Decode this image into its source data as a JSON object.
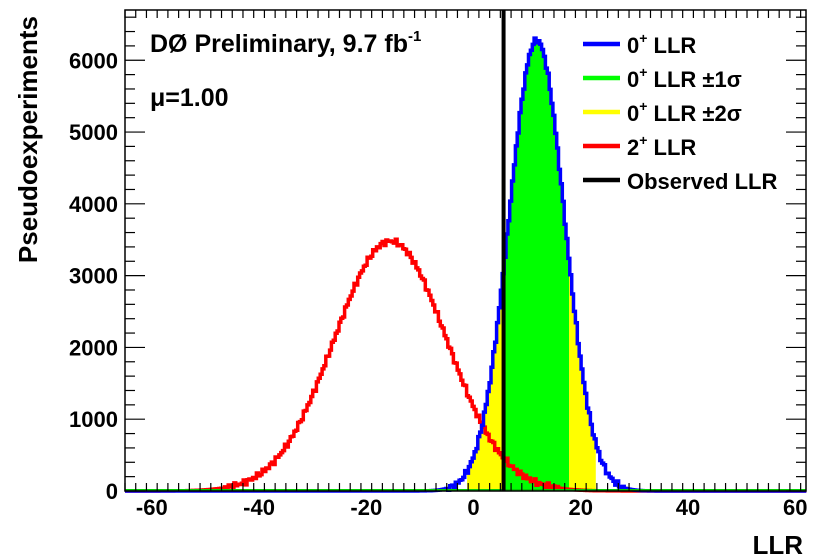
{
  "chart_data": {
    "type": "line",
    "title": "DØ Preliminary, 9.7 fb",
    "title_superscript": "-1",
    "annotation": "μ=1.00",
    "xlabel": "LLR",
    "ylabel": "Pseudoexperiments",
    "xlim": [
      -65,
      62
    ],
    "ylim": [
      0,
      6700
    ],
    "x_ticks": [
      -60,
      -40,
      -20,
      0,
      20,
      40,
      60
    ],
    "x_tick_labels": [
      "-60",
      "-40",
      "-20",
      "0",
      "20",
      "40",
      "60"
    ],
    "y_ticks": [
      0,
      1000,
      2000,
      3000,
      4000,
      5000,
      6000
    ],
    "y_tick_labels": [
      "0",
      "1000",
      "2000",
      "3000",
      "4000",
      "5000",
      "6000"
    ],
    "legend_position": "top-right",
    "legend": [
      {
        "text": "0",
        "sup": "+",
        "suffix": " LLR",
        "color": "#0000ff",
        "kind": "line"
      },
      {
        "text": "0",
        "sup": "+",
        "suffix": " LLR ±1σ",
        "color": "#00ff00",
        "kind": "line"
      },
      {
        "text": "0",
        "sup": "+",
        "suffix": " LLR ±2σ",
        "color": "#ffff00",
        "kind": "line"
      },
      {
        "text": "2",
        "sup": "+",
        "suffix": " LLR",
        "color": "#ff0000",
        "kind": "line"
      },
      {
        "text": "Observed LLR",
        "sup": "",
        "suffix": "",
        "color": "#000000",
        "kind": "line"
      }
    ],
    "series": [
      {
        "name": "0+ LLR",
        "color": "#0000ff",
        "peak_x": 11.8,
        "peak_y": 6280,
        "sigma": 5.2
      },
      {
        "name": "2+ LLR",
        "color": "#ff0000",
        "peak_x": -15.5,
        "peak_y": 3480,
        "sigma": 10.5
      }
    ],
    "bands": [
      {
        "name": "0+ LLR ±2σ",
        "color": "#ffff00",
        "x_range": [
          -1.2,
          22.8
        ]
      },
      {
        "name": "0+ LLR ±1σ",
        "color": "#00ff00",
        "x_range": [
          5.8,
          17.8
        ]
      }
    ],
    "observed_llr": 5.6
  }
}
